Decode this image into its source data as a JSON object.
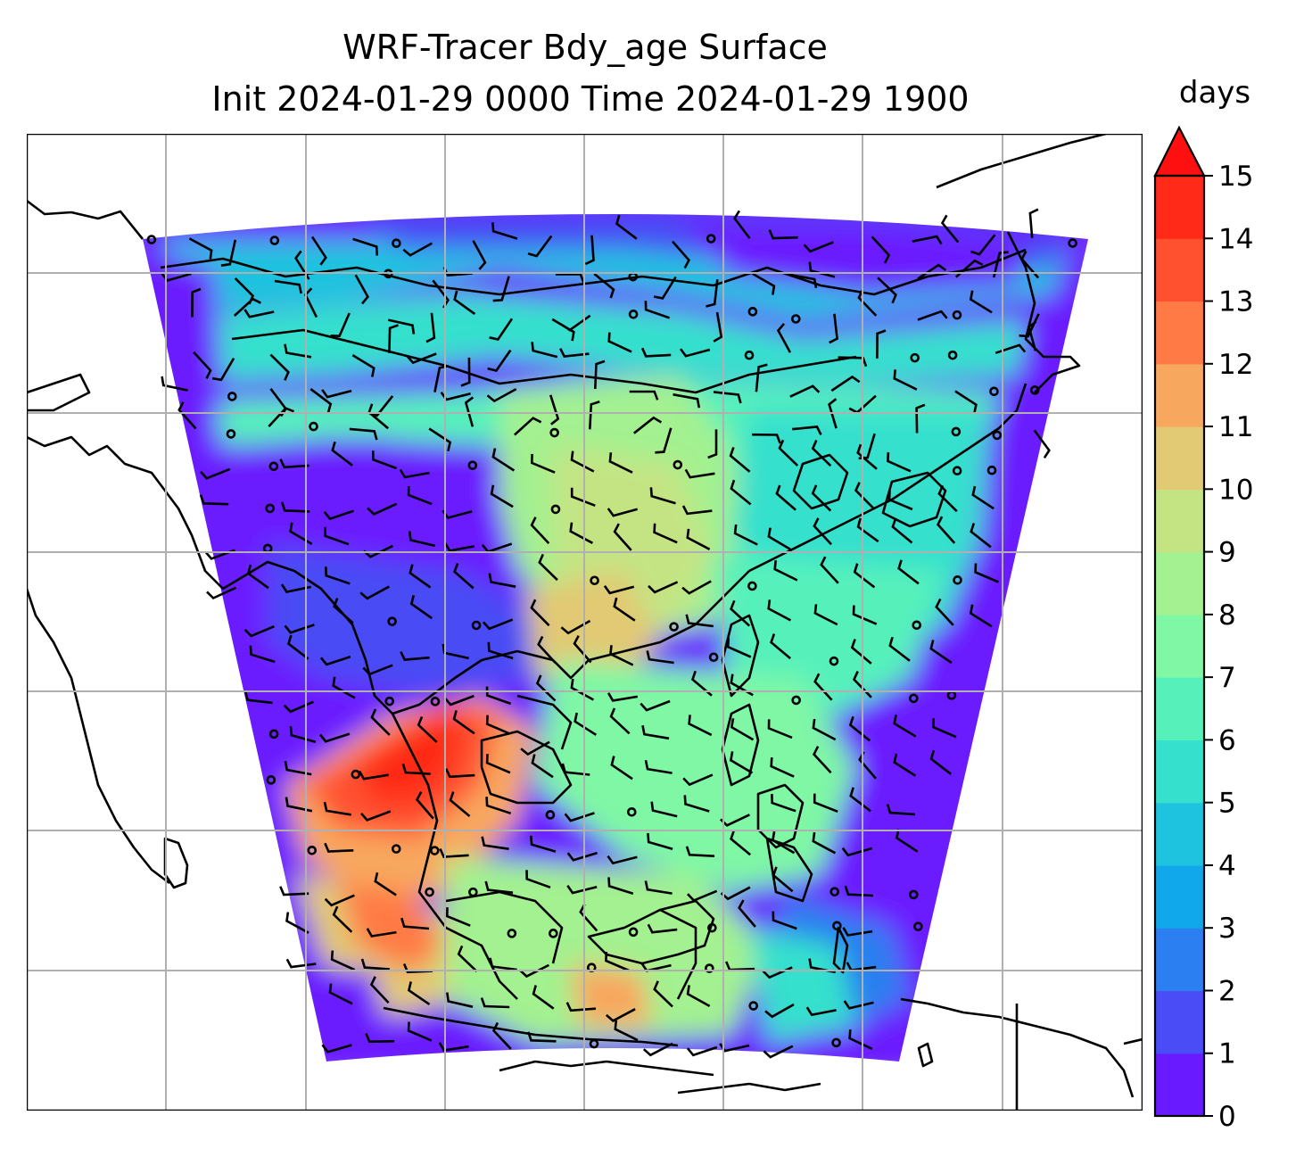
{
  "figure": {
    "title_line1": "WRF-Tracer Bdy_age Surface",
    "title_line2": "Init 2024-01-29 0000 Time 2024-01-29 1900"
  },
  "colorbar": {
    "units": "days",
    "extend": "max",
    "range": [
      0,
      15
    ],
    "tick_labels": [
      "0",
      "1",
      "2",
      "3",
      "4",
      "5",
      "6",
      "7",
      "8",
      "9",
      "10",
      "11",
      "12",
      "13",
      "14",
      "15"
    ],
    "colors": [
      "#6a1aff",
      "#4a4cf5",
      "#2c7ff0",
      "#10a8ea",
      "#1ec3df",
      "#35e0cd",
      "#56f1bb",
      "#7ff7a5",
      "#a3f190",
      "#c4e484",
      "#e2c973",
      "#f8a75e",
      "#ff7a45",
      "#ff5130",
      "#ff2a18"
    ],
    "extend_color": "#ff1010"
  },
  "map_field": {
    "variable": "Bdy_age",
    "level": "Surface",
    "overlay": "wind barbs",
    "gridlines": true,
    "coastlines": true
  }
}
